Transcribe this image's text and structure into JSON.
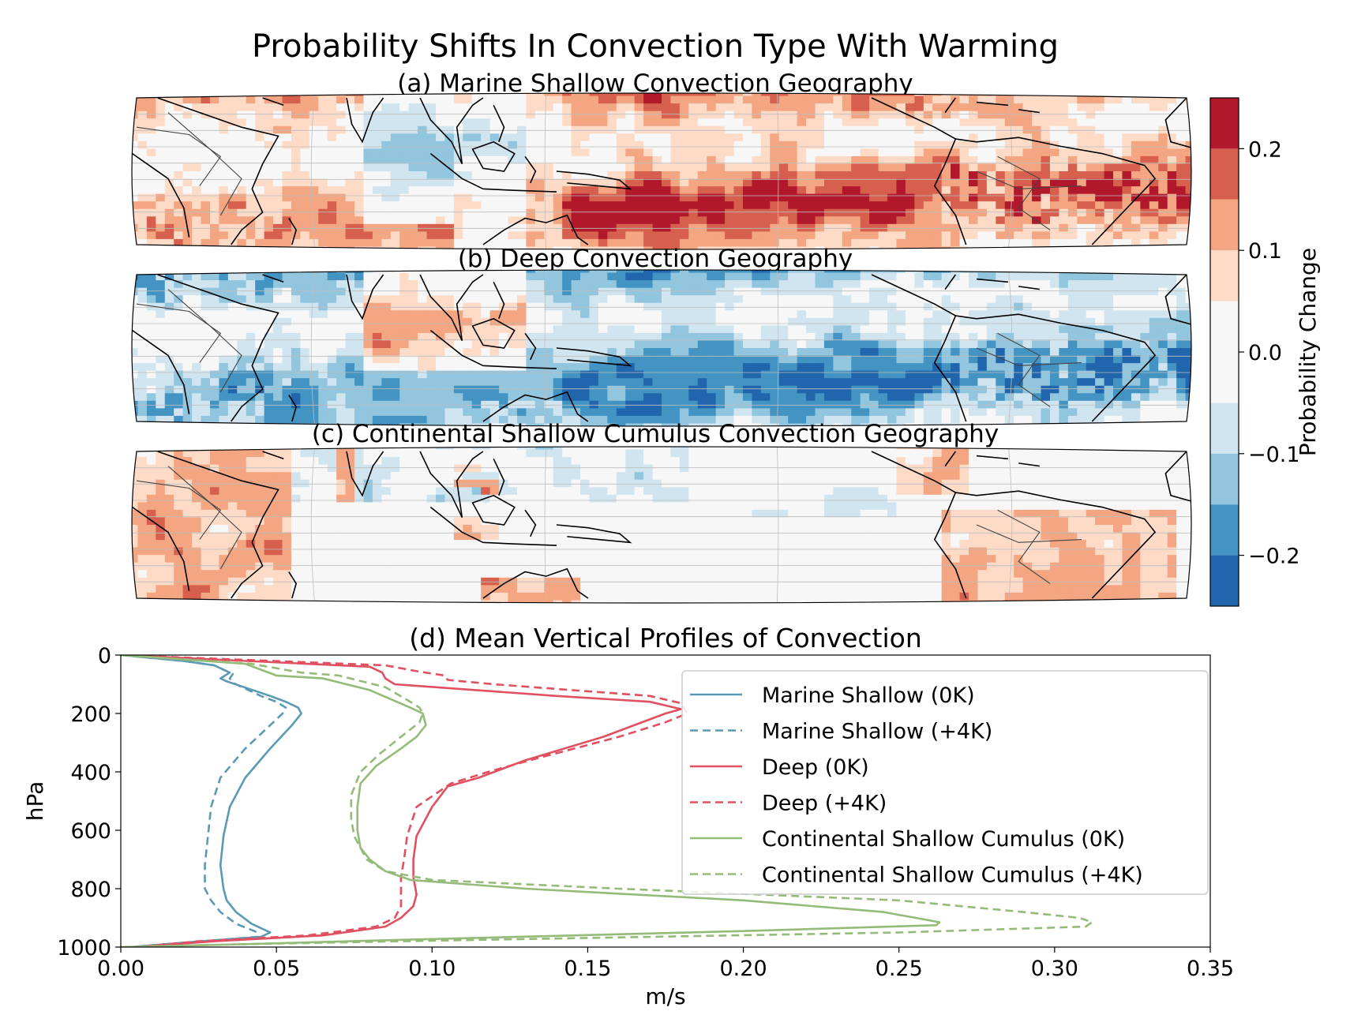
{
  "figure_title": "Probability Shifts In Convection Type With Warming",
  "colorbar": {
    "label": "Probability Change",
    "ticks": [
      "0.2",
      "0.1",
      "0.0",
      "−0.1",
      "−0.2"
    ],
    "range": [
      -0.25,
      0.25
    ],
    "bins": [
      {
        "from": 0.2,
        "to": 0.25,
        "color": "#b2182b"
      },
      {
        "from": 0.15,
        "to": 0.2,
        "color": "#d6604d"
      },
      {
        "from": 0.1,
        "to": 0.15,
        "color": "#f4a582"
      },
      {
        "from": 0.05,
        "to": 0.1,
        "color": "#fddbc7"
      },
      {
        "from": -0.05,
        "to": 0.05,
        "color": "#f7f7f7"
      },
      {
        "from": -0.1,
        "to": -0.05,
        "color": "#d1e5f0"
      },
      {
        "from": -0.15,
        "to": -0.1,
        "color": "#92c5de"
      },
      {
        "from": -0.2,
        "to": -0.15,
        "color": "#4393c3"
      },
      {
        "from": -0.25,
        "to": -0.2,
        "color": "#2166ac"
      }
    ]
  },
  "maps": [
    {
      "title": "(a) Marine Shallow Convection Geography",
      "dominant": "positive"
    },
    {
      "title": "(b) Deep Convection Geography",
      "dominant": "negative"
    },
    {
      "title": "(c) Continental Shallow Cumulus Convection Geography",
      "dominant": "land"
    }
  ],
  "chart_data": {
    "type": "line",
    "title": "(d) Mean Vertical Profiles of Convection",
    "xlabel": "m/s",
    "ylabel": "hPa",
    "xlim": [
      0.0,
      0.35
    ],
    "ylim": [
      1000,
      0
    ],
    "xticks": [
      "0.00",
      "0.05",
      "0.10",
      "0.15",
      "0.20",
      "0.25",
      "0.30",
      "0.35"
    ],
    "yticks": [
      "0",
      "200",
      "400",
      "600",
      "800",
      "1000"
    ],
    "legend_position": "upper-right",
    "series": [
      {
        "name": "Marine Shallow (0K)",
        "color": "#5b9ab4",
        "dash": false,
        "points": [
          [
            0,
            0
          ],
          [
            0.02,
            20
          ],
          [
            0.03,
            35
          ],
          [
            0.035,
            60
          ],
          [
            0.032,
            80
          ],
          [
            0.034,
            90
          ],
          [
            0.048,
            140
          ],
          [
            0.053,
            160
          ],
          [
            0.057,
            180
          ],
          [
            0.058,
            200
          ],
          [
            0.055,
            240
          ],
          [
            0.048,
            320
          ],
          [
            0.04,
            420
          ],
          [
            0.035,
            520
          ],
          [
            0.033,
            620
          ],
          [
            0.032,
            720
          ],
          [
            0.033,
            800
          ],
          [
            0.034,
            840
          ],
          [
            0.037,
            880
          ],
          [
            0.042,
            920
          ],
          [
            0.048,
            950
          ],
          [
            0.045,
            965
          ],
          [
            0.02,
            985
          ],
          [
            0.003,
            1000
          ]
        ]
      },
      {
        "name": "Marine Shallow (+4K)",
        "color": "#5b9ab4",
        "dash": true,
        "points": [
          [
            0,
            0
          ],
          [
            0.02,
            20
          ],
          [
            0.03,
            35
          ],
          [
            0.036,
            65
          ],
          [
            0.035,
            80
          ],
          [
            0.036,
            95
          ],
          [
            0.045,
            140
          ],
          [
            0.05,
            160
          ],
          [
            0.053,
            180
          ],
          [
            0.052,
            200
          ],
          [
            0.048,
            240
          ],
          [
            0.04,
            320
          ],
          [
            0.032,
            420
          ],
          [
            0.029,
            520
          ],
          [
            0.028,
            620
          ],
          [
            0.027,
            720
          ],
          [
            0.027,
            800
          ],
          [
            0.029,
            840
          ],
          [
            0.032,
            880
          ],
          [
            0.037,
            920
          ],
          [
            0.044,
            950
          ],
          [
            0.044,
            965
          ],
          [
            0.02,
            985
          ],
          [
            0.003,
            1000
          ]
        ]
      },
      {
        "name": "Deep (0K)",
        "color": "#e05060",
        "dash": false,
        "points": [
          [
            0,
            0
          ],
          [
            0.08,
            40
          ],
          [
            0.084,
            60
          ],
          [
            0.085,
            80
          ],
          [
            0.088,
            100
          ],
          [
            0.14,
            140
          ],
          [
            0.17,
            160
          ],
          [
            0.18,
            185
          ],
          [
            0.175,
            200
          ],
          [
            0.17,
            220
          ],
          [
            0.155,
            280
          ],
          [
            0.13,
            360
          ],
          [
            0.115,
            420
          ],
          [
            0.105,
            450
          ],
          [
            0.1,
            520
          ],
          [
            0.095,
            620
          ],
          [
            0.094,
            700
          ],
          [
            0.094,
            760
          ],
          [
            0.095,
            820
          ],
          [
            0.094,
            860
          ],
          [
            0.09,
            900
          ],
          [
            0.085,
            930
          ],
          [
            0.065,
            960
          ],
          [
            0.03,
            980
          ],
          [
            0.005,
            1000
          ]
        ]
      },
      {
        "name": "Deep (+4K)",
        "color": "#e05060",
        "dash": true,
        "points": [
          [
            0,
            0
          ],
          [
            0.085,
            35
          ],
          [
            0.095,
            55
          ],
          [
            0.104,
            70
          ],
          [
            0.105,
            85
          ],
          [
            0.12,
            100
          ],
          [
            0.17,
            140
          ],
          [
            0.18,
            165
          ],
          [
            0.182,
            200
          ],
          [
            0.175,
            230
          ],
          [
            0.16,
            280
          ],
          [
            0.135,
            350
          ],
          [
            0.118,
            400
          ],
          [
            0.106,
            440
          ],
          [
            0.095,
            520
          ],
          [
            0.092,
            620
          ],
          [
            0.091,
            700
          ],
          [
            0.09,
            760
          ],
          [
            0.09,
            820
          ],
          [
            0.09,
            860
          ],
          [
            0.088,
            900
          ],
          [
            0.082,
            930
          ],
          [
            0.06,
            960
          ],
          [
            0.025,
            980
          ],
          [
            0.005,
            1000
          ]
        ]
      },
      {
        "name": "Continental Shallow Cumulus (0K)",
        "color": "#94bb78",
        "dash": false,
        "points": [
          [
            0,
            0
          ],
          [
            0.04,
            30
          ],
          [
            0.045,
            50
          ],
          [
            0.05,
            70
          ],
          [
            0.065,
            80
          ],
          [
            0.08,
            120
          ],
          [
            0.093,
            180
          ],
          [
            0.097,
            200
          ],
          [
            0.098,
            240
          ],
          [
            0.095,
            280
          ],
          [
            0.09,
            320
          ],
          [
            0.082,
            380
          ],
          [
            0.077,
            440
          ],
          [
            0.076,
            520
          ],
          [
            0.076,
            600
          ],
          [
            0.077,
            660
          ],
          [
            0.08,
            700
          ],
          [
            0.085,
            740
          ],
          [
            0.093,
            770
          ],
          [
            0.13,
            800
          ],
          [
            0.2,
            840
          ],
          [
            0.245,
            880
          ],
          [
            0.263,
            915
          ],
          [
            0.262,
            925
          ],
          [
            0.2,
            945
          ],
          [
            0.09,
            975
          ],
          [
            0.04,
            990
          ],
          [
            0,
            1000
          ]
        ]
      },
      {
        "name": "Continental Shallow Cumulus (+4K)",
        "color": "#94bb78",
        "dash": true,
        "points": [
          [
            0,
            0
          ],
          [
            0.042,
            30
          ],
          [
            0.05,
            45
          ],
          [
            0.058,
            60
          ],
          [
            0.07,
            70
          ],
          [
            0.085,
            110
          ],
          [
            0.093,
            160
          ],
          [
            0.096,
            180
          ],
          [
            0.097,
            200
          ],
          [
            0.096,
            230
          ],
          [
            0.09,
            280
          ],
          [
            0.083,
            340
          ],
          [
            0.077,
            400
          ],
          [
            0.074,
            480
          ],
          [
            0.074,
            560
          ],
          [
            0.075,
            620
          ],
          [
            0.077,
            660
          ],
          [
            0.079,
            700
          ],
          [
            0.085,
            740
          ],
          [
            0.1,
            770
          ],
          [
            0.16,
            800
          ],
          [
            0.25,
            840
          ],
          [
            0.29,
            880
          ],
          [
            0.308,
            900
          ],
          [
            0.312,
            915
          ],
          [
            0.31,
            930
          ],
          [
            0.25,
            950
          ],
          [
            0.1,
            978
          ],
          [
            0.04,
            990
          ],
          [
            0,
            1000
          ]
        ]
      }
    ]
  }
}
